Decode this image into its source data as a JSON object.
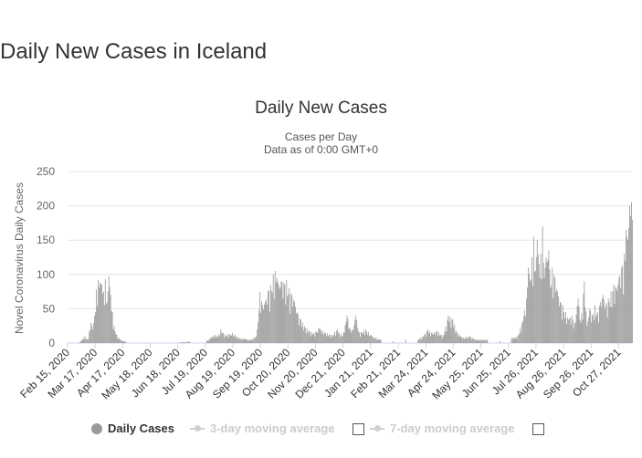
{
  "page": {
    "title": "Daily New Cases in Iceland"
  },
  "colors": {
    "bars": "#999999",
    "grid": "#e6e6e6",
    "axis": "#ccd6eb",
    "legend_off": "#cccccc"
  },
  "legend": {
    "items": [
      {
        "label": "Daily Cases",
        "state": "visible",
        "marker": "dot-icon"
      },
      {
        "label": "3-day moving average",
        "state": "hidden",
        "marker": "line-dot-icon"
      },
      {
        "label": "7-day moving average",
        "state": "hidden",
        "marker": "line-dot-icon"
      }
    ]
  },
  "chart_data": {
    "type": "bar",
    "title": "Daily New Cases",
    "subtitle": [
      "Cases per Day",
      "Data as of 0:00 GMT+0"
    ],
    "ylabel": "Novel Coronavirus Daily Cases",
    "xlabel": "",
    "ylim": [
      0,
      250
    ],
    "yticks": [
      0,
      50,
      100,
      150,
      200,
      250
    ],
    "grid": true,
    "legend_position": "bottom",
    "x_start": "2020-02-15",
    "x_end": "2021-11-11",
    "xticks": [
      "Feb 15, 2020",
      "Mar 17, 2020",
      "Apr 17, 2020",
      "May 18, 2020",
      "Jun 18, 2020",
      "Jul 19, 2020",
      "Aug 19, 2020",
      "Sep 19, 2020",
      "Oct 20, 2020",
      "Nov 20, 2020",
      "Dec 21, 2020",
      "Jan 21, 2021",
      "Feb 21, 2021",
      "Mar 24, 2021",
      "Apr 24, 2021",
      "May 25, 2021",
      "Jun 25, 2021",
      "Jul 26, 2021",
      "Aug 26, 2021",
      "Sep 26, 2021",
      "Oct 27, 2021"
    ],
    "series": [
      {
        "name": "Daily Cases",
        "points": [
          [
            "2020-02-28",
            1
          ],
          [
            "2020-03-05",
            10
          ],
          [
            "2020-03-08",
            5
          ],
          [
            "2020-03-12",
            30
          ],
          [
            "2020-03-14",
            20
          ],
          [
            "2020-03-16",
            40
          ],
          [
            "2020-03-18",
            78
          ],
          [
            "2020-03-20",
            92
          ],
          [
            "2020-03-22",
            88
          ],
          [
            "2020-03-24",
            85
          ],
          [
            "2020-03-26",
            75
          ],
          [
            "2020-03-28",
            93
          ],
          [
            "2020-03-30",
            60
          ],
          [
            "2020-04-01",
            97
          ],
          [
            "2020-04-03",
            70
          ],
          [
            "2020-04-05",
            45
          ],
          [
            "2020-04-07",
            25
          ],
          [
            "2020-04-10",
            12
          ],
          [
            "2020-04-14",
            5
          ],
          [
            "2020-04-20",
            2
          ],
          [
            "2020-06-20",
            1
          ],
          [
            "2020-07-01",
            2
          ],
          [
            "2020-07-20",
            3
          ],
          [
            "2020-07-25",
            8
          ],
          [
            "2020-07-29",
            12
          ],
          [
            "2020-08-02",
            10
          ],
          [
            "2020-08-05",
            20
          ],
          [
            "2020-08-10",
            12
          ],
          [
            "2020-08-18",
            15
          ],
          [
            "2020-08-25",
            8
          ],
          [
            "2020-09-01",
            6
          ],
          [
            "2020-09-08",
            5
          ],
          [
            "2020-09-14",
            10
          ],
          [
            "2020-09-16",
            30
          ],
          [
            "2020-09-18",
            75
          ],
          [
            "2020-09-21",
            55
          ],
          [
            "2020-09-24",
            60
          ],
          [
            "2020-09-27",
            75
          ],
          [
            "2020-09-30",
            85
          ],
          [
            "2020-10-03",
            100
          ],
          [
            "2020-10-05",
            105
          ],
          [
            "2020-10-07",
            95
          ],
          [
            "2020-10-09",
            85
          ],
          [
            "2020-10-12",
            90
          ],
          [
            "2020-10-15",
            88
          ],
          [
            "2020-10-18",
            92
          ],
          [
            "2020-10-21",
            80
          ],
          [
            "2020-10-24",
            70
          ],
          [
            "2020-10-27",
            60
          ],
          [
            "2020-10-30",
            45
          ],
          [
            "2020-11-03",
            35
          ],
          [
            "2020-11-07",
            25
          ],
          [
            "2020-11-12",
            18
          ],
          [
            "2020-11-18",
            15
          ],
          [
            "2020-11-24",
            22
          ],
          [
            "2020-12-01",
            15
          ],
          [
            "2020-12-08",
            12
          ],
          [
            "2020-12-14",
            20
          ],
          [
            "2020-12-20",
            10
          ],
          [
            "2020-12-25",
            40
          ],
          [
            "2020-12-30",
            15
          ],
          [
            "2021-01-04",
            40
          ],
          [
            "2021-01-08",
            15
          ],
          [
            "2021-01-15",
            20
          ],
          [
            "2021-01-22",
            10
          ],
          [
            "2021-02-01",
            5
          ],
          [
            "2021-02-15",
            3
          ],
          [
            "2021-03-01",
            5
          ],
          [
            "2021-03-15",
            5
          ],
          [
            "2021-03-22",
            12
          ],
          [
            "2021-03-26",
            20
          ],
          [
            "2021-03-30",
            15
          ],
          [
            "2021-04-05",
            18
          ],
          [
            "2021-04-12",
            10
          ],
          [
            "2021-04-18",
            40
          ],
          [
            "2021-04-23",
            35
          ],
          [
            "2021-04-28",
            15
          ],
          [
            "2021-05-05",
            8
          ],
          [
            "2021-05-12",
            10
          ],
          [
            "2021-05-20",
            5
          ],
          [
            "2021-06-01",
            5
          ],
          [
            "2021-06-15",
            3
          ],
          [
            "2021-06-28",
            8
          ],
          [
            "2021-07-05",
            10
          ],
          [
            "2021-07-12",
            40
          ],
          [
            "2021-07-15",
            65
          ],
          [
            "2021-07-17",
            110
          ],
          [
            "2021-07-19",
            90
          ],
          [
            "2021-07-21",
            125
          ],
          [
            "2021-07-23",
            155
          ],
          [
            "2021-07-25",
            105
          ],
          [
            "2021-07-27",
            150
          ],
          [
            "2021-07-29",
            115
          ],
          [
            "2021-07-31",
            130
          ],
          [
            "2021-08-02",
            170
          ],
          [
            "2021-08-04",
            95
          ],
          [
            "2021-08-06",
            125
          ],
          [
            "2021-08-09",
            135
          ],
          [
            "2021-08-11",
            80
          ],
          [
            "2021-08-13",
            110
          ],
          [
            "2021-08-16",
            95
          ],
          [
            "2021-08-19",
            75
          ],
          [
            "2021-08-22",
            60
          ],
          [
            "2021-08-25",
            55
          ],
          [
            "2021-08-28",
            45
          ],
          [
            "2021-09-01",
            35
          ],
          [
            "2021-09-04",
            40
          ],
          [
            "2021-09-07",
            30
          ],
          [
            "2021-09-11",
            65
          ],
          [
            "2021-09-14",
            30
          ],
          [
            "2021-09-18",
            90
          ],
          [
            "2021-09-21",
            25
          ],
          [
            "2021-09-24",
            50
          ],
          [
            "2021-09-27",
            40
          ],
          [
            "2021-09-30",
            55
          ],
          [
            "2021-10-03",
            45
          ],
          [
            "2021-10-06",
            60
          ],
          [
            "2021-10-09",
            70
          ],
          [
            "2021-10-12",
            55
          ],
          [
            "2021-10-15",
            65
          ],
          [
            "2021-10-18",
            75
          ],
          [
            "2021-10-21",
            85
          ],
          [
            "2021-10-24",
            80
          ],
          [
            "2021-10-27",
            95
          ],
          [
            "2021-10-30",
            110
          ],
          [
            "2021-11-02",
            130
          ],
          [
            "2021-11-04",
            165
          ],
          [
            "2021-11-06",
            150
          ],
          [
            "2021-11-08",
            200
          ],
          [
            "2021-11-09",
            185
          ],
          [
            "2021-11-10",
            205
          ],
          [
            "2021-11-11",
            180
          ]
        ]
      },
      {
        "name": "3-day moving average",
        "hidden": true,
        "points": []
      },
      {
        "name": "7-day moving average",
        "hidden": true,
        "points": []
      }
    ]
  }
}
